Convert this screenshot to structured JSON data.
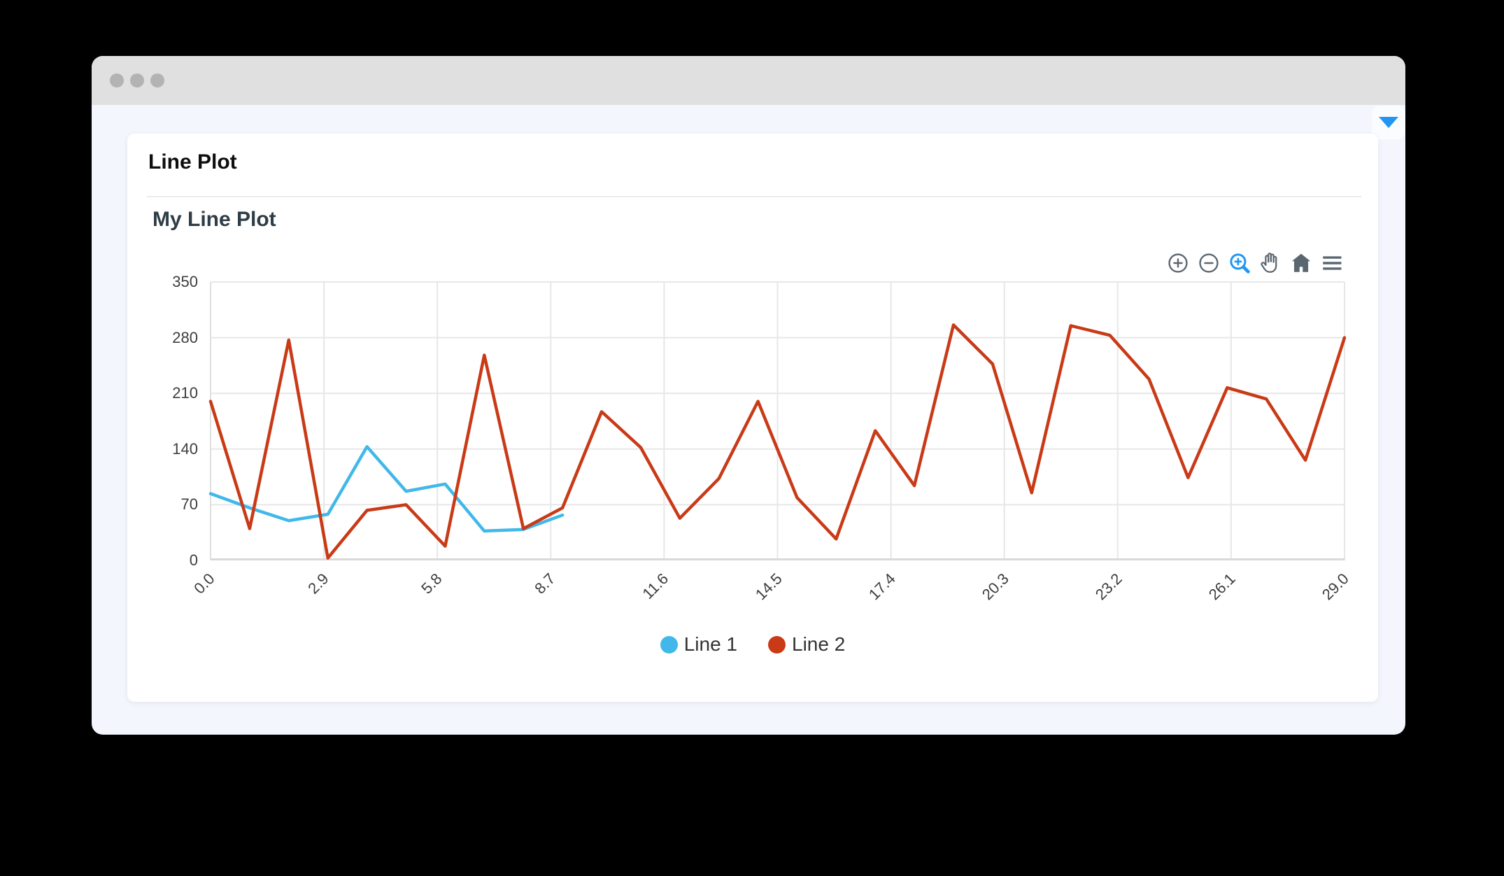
{
  "window": {
    "traffic_lights": [
      "close",
      "minimize",
      "maximize"
    ]
  },
  "header": {
    "collapse_icon": "caret-down-icon",
    "collapse_icon_color": "#2196f3"
  },
  "card": {
    "title": "Line Plot"
  },
  "chart": {
    "toolbar": [
      {
        "name": "zoom-in",
        "icon": "circle-plus-icon",
        "active": false
      },
      {
        "name": "zoom-out",
        "icon": "circle-minus-icon",
        "active": false
      },
      {
        "name": "box-zoom",
        "icon": "magnifier-plus-icon",
        "active": true
      },
      {
        "name": "pan",
        "icon": "hand-icon",
        "active": false
      },
      {
        "name": "reset",
        "icon": "home-icon",
        "active": false
      },
      {
        "name": "menu",
        "icon": "hamburger-icon",
        "active": false
      }
    ],
    "colors": {
      "tool": "#5b6770",
      "active_tool": "#2196f3",
      "grid": "#e7e7e7",
      "axis": "#d9d9d9",
      "spine": "#e0e0e0",
      "tick_text": "#3e3e3e"
    }
  },
  "chart_data": {
    "type": "line",
    "title": "My Line Plot",
    "xlim": [
      0,
      29
    ],
    "ylim": [
      0,
      350
    ],
    "grid": true,
    "legend_position": "bottom-center",
    "xticks": {
      "values": [
        0,
        2.9,
        5.8,
        8.7,
        11.6,
        14.5,
        17.4,
        20.3,
        23.2,
        26.1,
        29.0
      ],
      "labels": [
        "0.0",
        "2.9",
        "5.8",
        "8.7",
        "11.6",
        "14.5",
        "17.4",
        "20.3",
        "23.2",
        "26.1",
        "29.0"
      ]
    },
    "yticks": {
      "values": [
        0,
        70,
        140,
        210,
        280,
        350
      ],
      "labels": [
        "0",
        "70",
        "140",
        "210",
        "280",
        "350"
      ]
    },
    "series": [
      {
        "name": "Line 1",
        "color": "#41b8e9",
        "x": [
          0,
          1,
          2,
          3,
          4,
          5,
          6,
          7,
          8,
          9
        ],
        "values": [
          84,
          66,
          50,
          58,
          143,
          87,
          96,
          37,
          39,
          57
        ]
      },
      {
        "name": "Line 2",
        "color": "#c93a17",
        "x": [
          0,
          1,
          2,
          3,
          4,
          5,
          6,
          7,
          8,
          9,
          10,
          11,
          12,
          13,
          14,
          15,
          16,
          17,
          18,
          19,
          20,
          21,
          22,
          23,
          24,
          25,
          26,
          27,
          28,
          29
        ],
        "values": [
          200,
          40,
          277,
          3,
          63,
          70,
          18,
          258,
          40,
          66,
          187,
          142,
          53,
          103,
          200,
          79,
          27,
          163,
          94,
          296,
          247,
          85,
          295,
          283,
          228,
          104,
          217,
          203,
          126,
          280
        ]
      }
    ]
  }
}
